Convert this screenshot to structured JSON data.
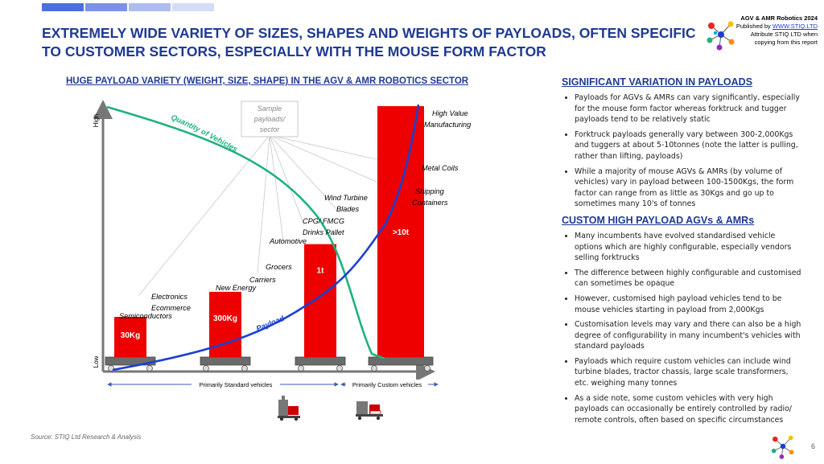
{
  "title": "EXTREMELY WIDE VARIETY OF SIZES, SHAPES AND WEIGHTS OF PAYLOADS, OFTEN SPECIFIC TO CUSTOMER SECTORS, ESPECIALLY WITH THE MOUSE FORM FACTOR",
  "brand": {
    "line1": "AGV & AMR Robotics 2024",
    "line2_prefix": "Published by ",
    "line2_link": "WWW.STIQ.LTD",
    "line3": "Attribute STIQ LTD when",
    "line4": "copying from this report"
  },
  "colors": {
    "title": "#1f3a93",
    "bar": "#ee0000",
    "quantity_curve": "#1fb27a",
    "payload_curve": "#1d3fcf"
  },
  "chart_data": {
    "type": "bar",
    "title": "HUGE PAYLOAD VARIETY (WEIGHT, SIZE, SHAPE) IN THE AGV & AMR ROBOTICS SECTOR",
    "ylabel_high": "High",
    "ylabel_low": "Low",
    "bars": [
      {
        "label": "30Kg",
        "value": 0.16
      },
      {
        "label": "300Kg",
        "value": 0.26
      },
      {
        "label": "1t",
        "value": 0.45
      },
      {
        "label": ">10t",
        "value": 1.0
      }
    ],
    "ylim": [
      0,
      1
    ],
    "series": [
      {
        "name": "Quantity of Vehicles",
        "trend": "decreasing"
      },
      {
        "name": "Payload",
        "trend": "increasing"
      }
    ],
    "sectors": [
      "Semiconductors",
      "Electronics",
      "Ecommerce",
      "New Energy",
      "Carriers",
      "Grocers",
      "Automotive",
      "CPG/ FMCG",
      "Drinks Pallet",
      "Wind Turbine",
      "Blades",
      "Shipping",
      "Containers",
      "Metal Coils",
      "High Value",
      "Manufacturing"
    ],
    "callout_lines": [
      "Sample",
      "payloads/",
      "sector"
    ],
    "axis_ranges": [
      "Primarily Standard vehicles",
      "Primarily Custom vehicles"
    ]
  },
  "source": "Source: STIQ Ltd Research & Analysis",
  "page_number": "6",
  "right": {
    "section1": {
      "heading": "SIGNIFICANT VARIATION IN PAYLOADS",
      "bullets": [
        "Payloads for AGVs & AMRs can vary significantly, especially for the mouse form factor whereas forktruck and tugger payloads tend to be relatively static",
        "Forktruck payloads generally vary between 300-2,000Kgs and tuggers at about 5-10tonnes (note the latter is pulling, rather than lifting, payloads)",
        "While a majority of mouse AGVs & AMRs (by volume of vehicles) vary in payload between 100-1500Kgs, the form factor can range from as little as 30Kgs and go up to sometimes many 10's of tonnes"
      ]
    },
    "section2": {
      "heading": "CUSTOM HIGH PAYLOAD AGVs & AMRs",
      "bullets": [
        "Many incumbents have evolved standardised vehicle options which are highly configurable, especially vendors selling forktrucks",
        "The difference between highly configurable and customised can sometimes be opaque",
        "However, customised high payload vehicles tend to be mouse vehicles starting in payload from 2,000Kgs",
        "Customisation levels may vary and there can also be a high degree of configurability in many incumbent's vehicles with standard payloads",
        "Payloads which require custom vehicles can include wind turbine blades, tractor chassis, large scale transformers, etc. weighing many tonnes",
        "As a side note, some custom vehicles with very high payloads can occasionally be entirely controlled by radio/ remote controls, often based on specific circumstances"
      ]
    }
  }
}
